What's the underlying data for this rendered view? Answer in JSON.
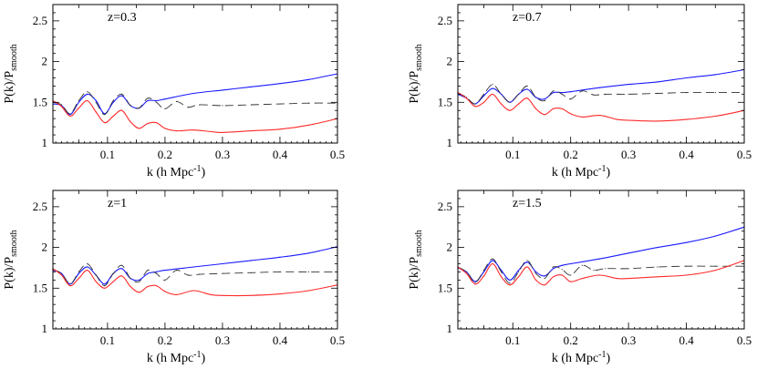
{
  "chart_data": [
    {
      "type": "line",
      "annotation": "z=0.3",
      "xlabel": "k (h Mpc",
      "xlabel_sup": "-1",
      "xlabel_tail": ")",
      "ylabel_main": "P(k)/P",
      "ylabel_sub": "smooth",
      "xlim": [
        0.005,
        0.5
      ],
      "ylim": [
        1,
        2.7
      ],
      "xticks": [
        "0.1",
        "0.2",
        "0.3",
        "0.4",
        "0.5"
      ],
      "yticks": [
        "1",
        "1.5",
        "2",
        "2.5"
      ],
      "series": [
        {
          "color": "#1a1aff",
          "style": "solid",
          "x": [
            0.005,
            0.02,
            0.035,
            0.05,
            0.065,
            0.08,
            0.095,
            0.11,
            0.125,
            0.14,
            0.155,
            0.17,
            0.185,
            0.2,
            0.25,
            0.3,
            0.35,
            0.4,
            0.45,
            0.5
          ],
          "y": [
            1.48,
            1.46,
            1.35,
            1.5,
            1.6,
            1.52,
            1.36,
            1.5,
            1.58,
            1.46,
            1.43,
            1.52,
            1.52,
            1.54,
            1.61,
            1.65,
            1.69,
            1.73,
            1.78,
            1.85
          ]
        },
        {
          "color": "#333333",
          "style": "dashed",
          "x": [
            0.005,
            0.02,
            0.035,
            0.05,
            0.065,
            0.08,
            0.095,
            0.11,
            0.125,
            0.14,
            0.155,
            0.17,
            0.185,
            0.2,
            0.22,
            0.24,
            0.26,
            0.3,
            0.35,
            0.4,
            0.45,
            0.5
          ],
          "y": [
            1.5,
            1.47,
            1.36,
            1.52,
            1.63,
            1.5,
            1.35,
            1.52,
            1.6,
            1.46,
            1.43,
            1.55,
            1.5,
            1.42,
            1.51,
            1.44,
            1.47,
            1.46,
            1.47,
            1.48,
            1.49,
            1.49
          ]
        },
        {
          "color": "#ff2a2a",
          "style": "solid",
          "x": [
            0.005,
            0.02,
            0.035,
            0.05,
            0.065,
            0.08,
            0.095,
            0.11,
            0.125,
            0.14,
            0.155,
            0.17,
            0.185,
            0.2,
            0.22,
            0.25,
            0.28,
            0.3,
            0.35,
            0.4,
            0.45,
            0.5
          ],
          "y": [
            1.52,
            1.45,
            1.33,
            1.43,
            1.52,
            1.38,
            1.25,
            1.33,
            1.4,
            1.26,
            1.18,
            1.24,
            1.25,
            1.18,
            1.15,
            1.16,
            1.14,
            1.13,
            1.15,
            1.17,
            1.22,
            1.3
          ]
        }
      ]
    },
    {
      "type": "line",
      "annotation": "z=0.7",
      "xlabel": "k (h Mpc",
      "xlabel_sup": "-1",
      "xlabel_tail": ")",
      "ylabel_main": "P(k)/P",
      "ylabel_sub": "smooth",
      "xlim": [
        0.005,
        0.5
      ],
      "ylim": [
        1,
        2.7
      ],
      "xticks": [
        "0.1",
        "0.2",
        "0.3",
        "0.4",
        "0.5"
      ],
      "yticks": [
        "1",
        "1.5",
        "2",
        "2.5"
      ],
      "series": [
        {
          "color": "#1a1aff",
          "style": "solid",
          "x": [
            0.005,
            0.02,
            0.035,
            0.05,
            0.065,
            0.08,
            0.095,
            0.11,
            0.125,
            0.14,
            0.155,
            0.17,
            0.185,
            0.2,
            0.25,
            0.3,
            0.35,
            0.4,
            0.45,
            0.5
          ],
          "y": [
            1.6,
            1.55,
            1.48,
            1.58,
            1.67,
            1.6,
            1.5,
            1.6,
            1.66,
            1.56,
            1.54,
            1.62,
            1.62,
            1.63,
            1.68,
            1.72,
            1.75,
            1.8,
            1.84,
            1.9
          ]
        },
        {
          "color": "#333333",
          "style": "dashed",
          "x": [
            0.005,
            0.02,
            0.035,
            0.05,
            0.065,
            0.08,
            0.095,
            0.11,
            0.125,
            0.14,
            0.155,
            0.17,
            0.185,
            0.2,
            0.22,
            0.24,
            0.26,
            0.3,
            0.35,
            0.4,
            0.45,
            0.5
          ],
          "y": [
            1.62,
            1.56,
            1.48,
            1.6,
            1.72,
            1.6,
            1.5,
            1.6,
            1.7,
            1.56,
            1.52,
            1.64,
            1.6,
            1.54,
            1.64,
            1.59,
            1.6,
            1.6,
            1.61,
            1.62,
            1.62,
            1.62
          ]
        },
        {
          "color": "#ff2a2a",
          "style": "solid",
          "x": [
            0.005,
            0.02,
            0.035,
            0.05,
            0.065,
            0.08,
            0.095,
            0.11,
            0.125,
            0.14,
            0.155,
            0.17,
            0.185,
            0.2,
            0.22,
            0.25,
            0.28,
            0.3,
            0.35,
            0.4,
            0.45,
            0.5
          ],
          "y": [
            1.62,
            1.55,
            1.45,
            1.5,
            1.6,
            1.48,
            1.4,
            1.48,
            1.55,
            1.42,
            1.35,
            1.42,
            1.42,
            1.36,
            1.32,
            1.34,
            1.29,
            1.28,
            1.27,
            1.29,
            1.33,
            1.4
          ]
        }
      ]
    },
    {
      "type": "line",
      "annotation": "z=1",
      "xlabel": "k (h Mpc",
      "xlabel_sup": "-1",
      "xlabel_tail": ")",
      "ylabel_main": "P(k)/P",
      "ylabel_sub": "smooth",
      "xlim": [
        0.005,
        0.5
      ],
      "ylim": [
        1,
        2.7
      ],
      "xticks": [
        "0.1",
        "0.2",
        "0.3",
        "0.4",
        "0.5"
      ],
      "yticks": [
        "1",
        "1.5",
        "2",
        "2.5"
      ],
      "series": [
        {
          "color": "#1a1aff",
          "style": "solid",
          "x": [
            0.005,
            0.02,
            0.035,
            0.05,
            0.065,
            0.08,
            0.095,
            0.11,
            0.125,
            0.14,
            0.155,
            0.17,
            0.185,
            0.2,
            0.25,
            0.3,
            0.35,
            0.4,
            0.45,
            0.5
          ],
          "y": [
            1.72,
            1.68,
            1.55,
            1.68,
            1.76,
            1.66,
            1.55,
            1.68,
            1.74,
            1.62,
            1.6,
            1.68,
            1.7,
            1.72,
            1.76,
            1.8,
            1.84,
            1.88,
            1.93,
            2.01
          ]
        },
        {
          "color": "#333333",
          "style": "dashed",
          "x": [
            0.005,
            0.02,
            0.035,
            0.05,
            0.065,
            0.08,
            0.095,
            0.11,
            0.125,
            0.14,
            0.155,
            0.17,
            0.185,
            0.2,
            0.22,
            0.24,
            0.26,
            0.3,
            0.35,
            0.4,
            0.45,
            0.5
          ],
          "y": [
            1.73,
            1.68,
            1.55,
            1.7,
            1.8,
            1.66,
            1.53,
            1.68,
            1.78,
            1.62,
            1.58,
            1.72,
            1.68,
            1.6,
            1.72,
            1.66,
            1.67,
            1.68,
            1.69,
            1.7,
            1.7,
            1.7
          ]
        },
        {
          "color": "#ff2a2a",
          "style": "solid",
          "x": [
            0.005,
            0.02,
            0.035,
            0.05,
            0.065,
            0.08,
            0.095,
            0.11,
            0.125,
            0.14,
            0.155,
            0.17,
            0.185,
            0.2,
            0.22,
            0.25,
            0.28,
            0.3,
            0.35,
            0.4,
            0.45,
            0.5
          ],
          "y": [
            1.74,
            1.66,
            1.53,
            1.62,
            1.72,
            1.58,
            1.5,
            1.58,
            1.65,
            1.52,
            1.45,
            1.52,
            1.53,
            1.46,
            1.42,
            1.47,
            1.42,
            1.41,
            1.41,
            1.43,
            1.47,
            1.54
          ]
        }
      ]
    },
    {
      "type": "line",
      "annotation": "z=1.5",
      "xlabel": "k (h Mpc",
      "xlabel_sup": "-1",
      "xlabel_tail": ")",
      "ylabel_main": "P(k)/P",
      "ylabel_sub": "smooth",
      "xlim": [
        0.005,
        0.5
      ],
      "ylim": [
        1,
        2.7
      ],
      "xticks": [
        "0.1",
        "0.2",
        "0.3",
        "0.4",
        "0.5"
      ],
      "yticks": [
        "1",
        "1.5",
        "2",
        "2.5"
      ],
      "series": [
        {
          "color": "#1a1aff",
          "style": "solid",
          "x": [
            0.005,
            0.02,
            0.035,
            0.05,
            0.065,
            0.08,
            0.095,
            0.11,
            0.125,
            0.14,
            0.155,
            0.17,
            0.185,
            0.2,
            0.25,
            0.3,
            0.35,
            0.4,
            0.45,
            0.5
          ],
          "y": [
            1.75,
            1.7,
            1.58,
            1.7,
            1.84,
            1.72,
            1.6,
            1.72,
            1.82,
            1.7,
            1.65,
            1.74,
            1.78,
            1.8,
            1.86,
            1.93,
            2.0,
            2.06,
            2.14,
            2.25
          ]
        },
        {
          "color": "#333333",
          "style": "dashed",
          "x": [
            0.005,
            0.02,
            0.035,
            0.05,
            0.065,
            0.08,
            0.095,
            0.11,
            0.125,
            0.14,
            0.155,
            0.17,
            0.185,
            0.2,
            0.22,
            0.24,
            0.26,
            0.3,
            0.35,
            0.4,
            0.45,
            0.5
          ],
          "y": [
            1.76,
            1.7,
            1.57,
            1.72,
            1.86,
            1.7,
            1.56,
            1.7,
            1.84,
            1.68,
            1.62,
            1.76,
            1.73,
            1.66,
            1.78,
            1.72,
            1.74,
            1.74,
            1.76,
            1.77,
            1.77,
            1.77
          ]
        },
        {
          "color": "#ff2a2a",
          "style": "solid",
          "x": [
            0.005,
            0.02,
            0.035,
            0.05,
            0.065,
            0.08,
            0.095,
            0.11,
            0.125,
            0.14,
            0.155,
            0.17,
            0.185,
            0.2,
            0.22,
            0.25,
            0.28,
            0.3,
            0.35,
            0.4,
            0.45,
            0.5
          ],
          "y": [
            1.76,
            1.68,
            1.55,
            1.65,
            1.8,
            1.64,
            1.54,
            1.64,
            1.76,
            1.6,
            1.54,
            1.64,
            1.66,
            1.58,
            1.62,
            1.66,
            1.62,
            1.62,
            1.64,
            1.66,
            1.72,
            1.84
          ]
        }
      ]
    }
  ]
}
